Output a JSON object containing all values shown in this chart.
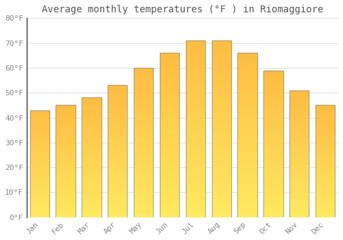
{
  "title": "Average monthly temperatures (°F ) in Riomaggiore",
  "months": [
    "Jan",
    "Feb",
    "Mar",
    "Apr",
    "May",
    "Jun",
    "Jul",
    "Aug",
    "Sep",
    "Oct",
    "Nov",
    "Dec"
  ],
  "values": [
    43,
    45,
    48,
    53,
    60,
    66,
    71,
    71,
    66,
    59,
    51,
    45
  ],
  "ylim": [
    0,
    80
  ],
  "yticks": [
    0,
    10,
    20,
    30,
    40,
    50,
    60,
    70,
    80
  ],
  "ytick_labels": [
    "0°F",
    "10°F",
    "20°F",
    "30°F",
    "40°F",
    "50°F",
    "60°F",
    "70°F",
    "80°F"
  ],
  "background_color": "#ffffff",
  "grid_color": "#e0e0e0",
  "title_fontsize": 10,
  "tick_fontsize": 8,
  "bar_color_light": "#FFD060",
  "bar_color_dark": "#F5A800",
  "bar_edge_color": "#888888",
  "spine_color": "#333333"
}
